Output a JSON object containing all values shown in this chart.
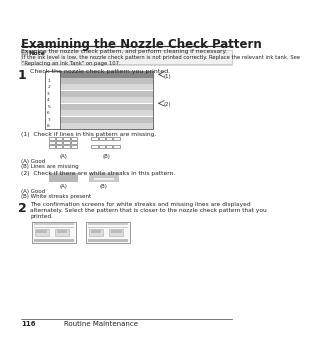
{
  "title": "Examining the Nozzle Check Pattern",
  "subtitle": "Examine the nozzle check pattern, and perform cleaning if necessary.",
  "note_label": "Note",
  "note_text": "If the ink level is low, the nozzle check pattern is not printed correctly. Replace the relevant ink tank. See\n\"Replacing an Ink Tank\" on page 107.",
  "step1_text": "Check the nozzle check pattern you printed.",
  "step1_sub1": "(1)  Check if lines in this pattern are missing.",
  "step1_sub1_A": "(A) Good",
  "step1_sub1_B": "(B) Lines are missing",
  "step1_sub2": "(2)  Check if there are white streaks in this pattern.",
  "step1_sub2_A": "(A) Good",
  "step1_sub2_B": "(B) White streaks present",
  "step2_text": "The confirmation screens for white streaks and missing lines are displayed\nalternately. Select the pattern that is closer to the nozzle check pattern that you\nprinted.",
  "footer_page": "116",
  "footer_text": "Routine Maintenance",
  "bg_color": "#ffffff",
  "text_color": "#222222",
  "stripe_colors": [
    "#c0c0c0",
    "#d8d8d8",
    "#c0c0c0",
    "#d8d8d8",
    "#c0c0c0",
    "#d8d8d8",
    "#c0c0c0",
    "#d8d8d8"
  ],
  "stripe_top_color": "#888888"
}
